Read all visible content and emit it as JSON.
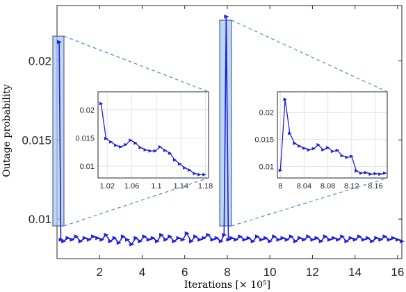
{
  "chart_data": {
    "type": "line",
    "title": "",
    "xlabel": "Iterations [× 10⁵]",
    "ylabel": "Outage probability",
    "xlim": [
      0,
      16.2
    ],
    "ylim": [
      0.0075,
      0.0235
    ],
    "x_ticks": [
      "2",
      "4",
      "6",
      "8",
      "10",
      "12",
      "14",
      "16"
    ],
    "y_ticks": [
      "0.01",
      "0.015",
      "0.02"
    ],
    "grid": false,
    "legend": "none",
    "color": "#1f1fe0",
    "series_main": {
      "x": [
        0.1,
        0.18,
        0.3,
        0.5,
        0.7,
        0.9,
        1.1,
        1.3,
        1.5,
        1.7,
        1.9,
        2.1,
        2.3,
        2.5,
        2.7,
        2.9,
        3.1,
        3.3,
        3.5,
        3.7,
        3.9,
        4.1,
        4.3,
        4.5,
        4.7,
        4.9,
        5.1,
        5.3,
        5.5,
        5.7,
        5.9,
        6.1,
        6.3,
        6.5,
        6.7,
        6.9,
        7.1,
        7.3,
        7.5,
        7.7,
        7.85,
        7.95,
        8.05,
        8.2,
        8.4,
        8.6,
        8.8,
        9.0,
        9.2,
        9.4,
        9.6,
        9.8,
        10.0,
        10.2,
        10.4,
        10.6,
        10.8,
        11.0,
        11.2,
        11.4,
        11.6,
        11.8,
        12.0,
        12.2,
        12.4,
        12.6,
        12.8,
        13.0,
        13.2,
        13.4,
        13.6,
        13.8,
        14.0,
        14.2,
        14.4,
        14.6,
        14.8,
        15.0,
        15.2,
        15.4,
        15.6,
        15.8,
        16.0,
        16.2
      ],
      "y": [
        0.0212,
        0.0087,
        0.0086,
        0.0088,
        0.0087,
        0.0089,
        0.0086,
        0.0088,
        0.0087,
        0.0089,
        0.0088,
        0.0087,
        0.009,
        0.0086,
        0.0088,
        0.0085,
        0.0089,
        0.0087,
        0.0084,
        0.0088,
        0.0086,
        0.0089,
        0.0087,
        0.0088,
        0.0086,
        0.009,
        0.0087,
        0.0089,
        0.0086,
        0.0088,
        0.0087,
        0.0091,
        0.0086,
        0.0089,
        0.0087,
        0.0088,
        0.009,
        0.0087,
        0.0088,
        0.0086,
        0.009,
        0.0228,
        0.0087,
        0.0088,
        0.0087,
        0.0089,
        0.0087,
        0.0088,
        0.0086,
        0.0089,
        0.0087,
        0.0088,
        0.0086,
        0.0089,
        0.0087,
        0.0088,
        0.0087,
        0.0089,
        0.0086,
        0.0088,
        0.0087,
        0.0089,
        0.0087,
        0.0088,
        0.0086,
        0.0089,
        0.0087,
        0.0088,
        0.0087,
        0.0089,
        0.0086,
        0.0088,
        0.0087,
        0.0089,
        0.0087,
        0.0088,
        0.0086,
        0.0088,
        0.0087,
        0.0089,
        0.0087,
        0.0088,
        0.0087,
        0.0086
      ]
    },
    "highlight_regions": [
      {
        "xlim": [
          1.0,
          1.2
        ]
      },
      {
        "xlim": [
          7.95,
          8.15
        ]
      }
    ],
    "insets": [
      {
        "xlim": [
          1.005,
          1.185
        ],
        "ylim": [
          0.0079,
          0.0232
        ],
        "x_ticks": [
          "1.02",
          "1.06",
          "1.1",
          "1.14",
          "1.18"
        ],
        "x_tick_values": [
          1.02,
          1.06,
          1.1,
          1.14,
          1.18
        ],
        "y_ticks": [
          "0.01",
          "0.015",
          "0.02"
        ],
        "y_tick_values": [
          0.01,
          0.015,
          0.02
        ],
        "grid": true,
        "x": [
          1.01,
          1.018,
          1.026,
          1.034,
          1.042,
          1.05,
          1.058,
          1.066,
          1.074,
          1.082,
          1.09,
          1.098,
          1.106,
          1.114,
          1.122,
          1.13,
          1.138,
          1.146,
          1.154,
          1.162,
          1.17,
          1.178
        ],
        "y": [
          0.0211,
          0.0149,
          0.0143,
          0.0137,
          0.0134,
          0.0138,
          0.0146,
          0.0141,
          0.0133,
          0.0129,
          0.0127,
          0.0127,
          0.0134,
          0.0128,
          0.0123,
          0.0111,
          0.0104,
          0.0097,
          0.0093,
          0.0087,
          0.0085,
          0.0085
        ]
      },
      {
        "xlim": [
          7.995,
          8.18
        ],
        "ylim": [
          0.0079,
          0.0238
        ],
        "x_ticks": [
          "8",
          "8.04",
          "8.08",
          "8.12",
          "8.16"
        ],
        "x_tick_values": [
          8.0,
          8.04,
          8.08,
          8.12,
          8.16
        ],
        "y_ticks": [
          "0.01",
          "0.015",
          "0.02"
        ],
        "y_tick_values": [
          0.01,
          0.015,
          0.02
        ],
        "grid": true,
        "x": [
          8.0,
          8.008,
          8.016,
          8.024,
          8.032,
          8.04,
          8.048,
          8.056,
          8.064,
          8.072,
          8.08,
          8.088,
          8.096,
          8.104,
          8.112,
          8.12,
          8.128,
          8.136,
          8.144,
          8.152,
          8.16,
          8.168,
          8.176
        ],
        "y": [
          0.0093,
          0.0224,
          0.0161,
          0.0143,
          0.0138,
          0.0134,
          0.0131,
          0.0133,
          0.014,
          0.0131,
          0.0135,
          0.0128,
          0.013,
          0.012,
          0.0117,
          0.0119,
          0.0092,
          0.0088,
          0.0089,
          0.0086,
          0.0087,
          0.0086,
          0.0088
        ]
      }
    ]
  }
}
